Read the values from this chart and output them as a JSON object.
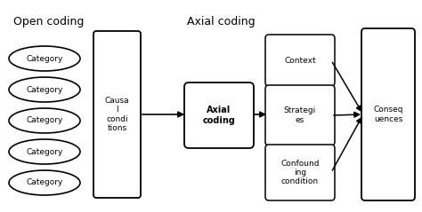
{
  "background_color": "#ffffff",
  "title_open": "Open coding",
  "title_axial": "Axial coding",
  "categories": [
    "Category",
    "Category",
    "Category",
    "Category",
    "Category"
  ],
  "causal_box_text": "Causa\nl\ncondi\ntions",
  "axial_coding_text": "Axial\ncoding",
  "context_text": "Context",
  "strategies_text": "Strategi\nes",
  "confounding_text": "Confound\ning\ncondition",
  "consequences_text": "Conseq\nuences",
  "ellipse_color": "#ffffff",
  "ellipse_edge": "#000000",
  "box_color": "#ffffff",
  "box_edge": "#000000",
  "text_color": "#000000",
  "arrow_color": "#000000",
  "font_size": 6.5,
  "title_font_size": 9
}
